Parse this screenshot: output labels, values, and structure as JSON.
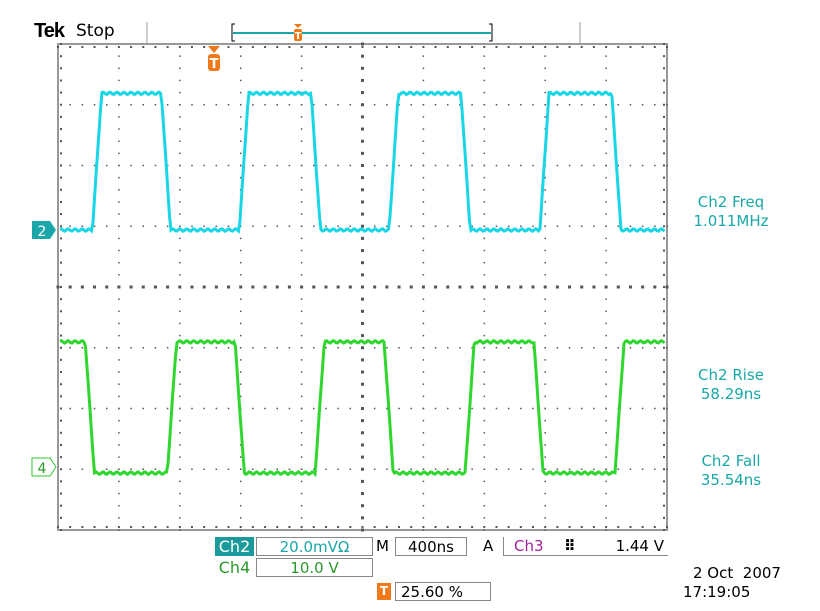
{
  "header": {
    "brand": "Tek",
    "status": "Stop"
  },
  "measurements": [
    {
      "label": "Ch2 Freq",
      "value": "1.011MHz"
    },
    {
      "label": "Ch2 Rise",
      "value": "58.29ns"
    },
    {
      "label": "Ch2 Fall",
      "value": "35.54ns"
    }
  ],
  "channels": {
    "ch2": {
      "label": "Ch2",
      "scale": "20.0mVΩ",
      "marker": "2",
      "color": "#19d6e6"
    },
    "ch4": {
      "label": "Ch4",
      "scale": "10.0 V",
      "marker": "4",
      "color": "#2ed62e"
    }
  },
  "timebase": {
    "prefix": "M",
    "value": "400ns"
  },
  "trigger": {
    "prefix": "A",
    "source": "Ch3",
    "slope_icon": "rising-edge-icon",
    "level": "1.44 V",
    "position": "25.60 %",
    "marker": "T",
    "color": "#f07a1a"
  },
  "datetime": {
    "date": "2 Oct  2007",
    "time": "17:19:05"
  },
  "chart_data": {
    "type": "line",
    "xdivisions": 10,
    "ydivisions": 8,
    "grid": true,
    "x_unit": "ns",
    "time_per_div": 400,
    "series": [
      {
        "channel": "Ch2",
        "volts_per_div": 0.02,
        "low": 0,
        "high": 0.045,
        "rise_times": [
          -768,
          197,
          1181,
          2171
        ],
        "fall_times": [
          -315,
          669,
          1653,
          2643
        ]
      },
      {
        "channel": "Ch4",
        "volts_per_div": 10,
        "low": -1,
        "high": 20.6,
        "fall_times": [
          -815,
          169,
          1148,
          2132
        ],
        "rise_times": [
          -276,
          695,
          1680,
          2664
        ]
      }
    ]
  }
}
